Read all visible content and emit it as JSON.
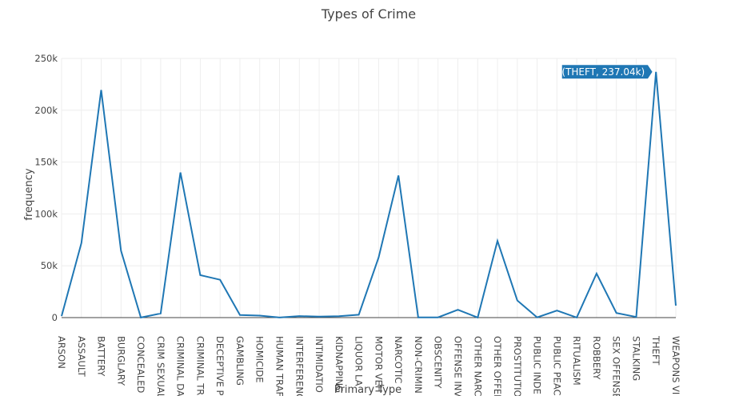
{
  "chart_data": {
    "type": "line",
    "title": "Types of Crime",
    "xlabel": "Primary Type",
    "ylabel": "frequency",
    "categories": [
      "ARSON",
      "ASSAULT",
      "BATTERY",
      "BURGLARY",
      "CONCEALED",
      "CRIM SEXUAL",
      "CRIMINAL DA",
      "CRIMINAL TR",
      "DECEPTIVE PI",
      "GAMBLING",
      "HOMICIDE",
      "HUMAN TRAF",
      "INTERFERENC",
      "INTIMIDATIO",
      "KIDNAPPING",
      "LIQUOR LA",
      "MOTOR VEH",
      "NARCOTIC",
      "NON-CRIMIN",
      "OBSCENITY",
      "OFFENSE INV",
      "OTHER NARC",
      "OTHER OFFEI",
      "PROSTITUTIO",
      "PUBLIC INDE",
      "PUBLIC PEAC",
      "RITUALISM",
      "ROBBERY",
      "SEX OFFENSE",
      "STALKING",
      "THEFT",
      "WEAPONS VI"
    ],
    "series": [
      {
        "color": "#1f77b4",
        "values": [
          1500,
          72000,
          219500,
          64500,
          100,
          4000,
          140000,
          41000,
          36500,
          2500,
          1900,
          100,
          1500,
          900,
          1400,
          2800,
          58000,
          137000,
          200,
          200,
          7600,
          100,
          74000,
          16500,
          200,
          6800,
          50,
          42500,
          4500,
          600,
          237040,
          11500
        ]
      }
    ],
    "ylim": [
      0,
      250000
    ],
    "yticks": [
      0,
      50000,
      100000,
      150000,
      200000,
      250000
    ],
    "ytick_labels": [
      "0",
      "50k",
      "100k",
      "150k",
      "200k",
      "250k"
    ],
    "grid": true,
    "tooltip": {
      "text": "(THEFT, 237.04k)",
      "category": "THEFT",
      "value": 237040
    }
  }
}
